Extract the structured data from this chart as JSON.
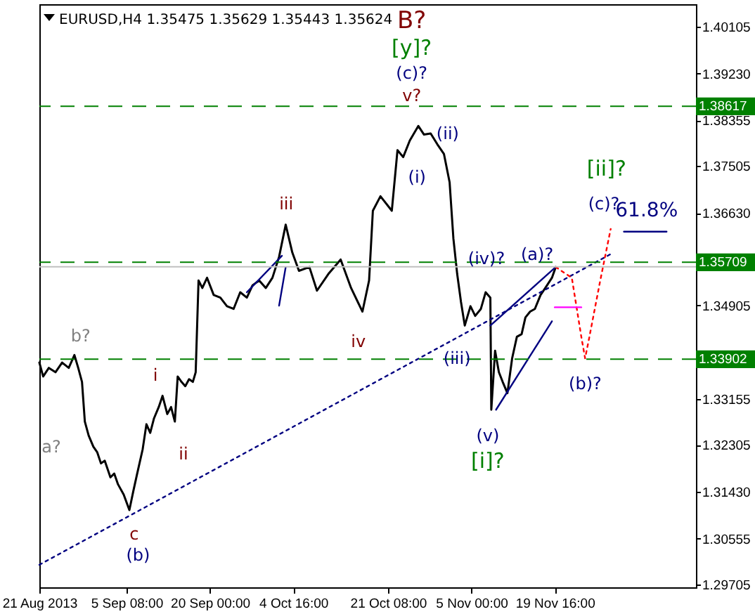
{
  "chart_data": {
    "type": "line",
    "title": "EURUSD,H4 1.35475 1.35629 1.35443 1.35624",
    "xlim": [
      "2013-08-21T00:00",
      "2013-12-14T12:00"
    ],
    "xticks": [
      {
        "value": "2013-08-21T00:00",
        "label": "21 Aug 2013"
      },
      {
        "value": "2013-09-05T08:00",
        "label": "5 Sep 08:00"
      },
      {
        "value": "2013-09-20T00:00",
        "label": "20 Sep 00:00"
      },
      {
        "value": "2013-10-04T16:00",
        "label": "4 Oct 16:00"
      },
      {
        "value": "2013-10-21T08:00",
        "label": "21 Oct 08:00"
      },
      {
        "value": "2013-11-05T00:00",
        "label": "5 Nov 00:00"
      },
      {
        "value": "2013-11-19T16:00",
        "label": "19 Nov 16:00"
      }
    ],
    "ylim": [
      1.2965,
      1.4052
    ],
    "yticks": [
      {
        "value": 1.29705,
        "label": "1.29705"
      },
      {
        "value": 1.30555,
        "label": "1.30555"
      },
      {
        "value": 1.3143,
        "label": "1.31430"
      },
      {
        "value": 1.32305,
        "label": "1.32305"
      },
      {
        "value": 1.33155,
        "label": "1.33155"
      },
      {
        "value": 1.34905,
        "label": "1.34905"
      },
      {
        "value": 1.3663,
        "label": "1.36630"
      },
      {
        "value": 1.37505,
        "label": "1.37505"
      },
      {
        "value": 1.38355,
        "label": "1.38355"
      },
      {
        "value": 1.3923,
        "label": "1.39230"
      },
      {
        "value": 1.40105,
        "label": "1.40105"
      }
    ],
    "grid": false,
    "series": [
      {
        "color": "#000000",
        "x": [
          "2013-08-21T00:00",
          "2013-08-21T16:00",
          "2013-08-22T16:00",
          "2013-08-23T20:00",
          "2013-08-25T00:00",
          "2013-08-26T04:00",
          "2013-08-27T04:00",
          "2013-08-27T20:00",
          "2013-08-28T12:00",
          "2013-08-29T00:00",
          "2013-08-29T16:00",
          "2013-08-30T12:00",
          "2013-08-31T04:00",
          "2013-08-31T20:00",
          "2013-09-01T12:00",
          "2013-09-02T12:00",
          "2013-09-03T04:00",
          "2013-09-03T20:00",
          "2013-09-04T20:00",
          "2013-09-05T20:00",
          "2013-09-06T12:00",
          "2013-09-07T04:00",
          "2013-09-08T04:00",
          "2013-09-08T20:00",
          "2013-09-09T12:00",
          "2013-09-10T04:00",
          "2013-09-11T00:00",
          "2013-09-11T16:00",
          "2013-09-12T12:00",
          "2013-09-13T04:00",
          "2013-09-13T20:00",
          "2013-09-14T08:00",
          "2013-09-15T00:00",
          "2013-09-15T16:00",
          "2013-09-16T08:00",
          "2013-09-17T00:00",
          "2013-09-17T12:00",
          "2013-09-18T00:00",
          "2013-09-18T16:00",
          "2013-09-19T12:00",
          "2013-09-20T16:00",
          "2013-09-21T20:00",
          "2013-09-23T00:00",
          "2013-09-24T04:00",
          "2013-09-25T08:00",
          "2013-09-26T12:00",
          "2013-09-27T12:00",
          "2013-09-28T16:00",
          "2013-09-29T20:00",
          "2013-10-01T00:00",
          "2013-10-02T04:00",
          "2013-10-03T08:00",
          "2013-10-04T12:00",
          "2013-10-05T16:00",
          "2013-10-07T12:00",
          "2013-10-08T20:00",
          "2013-10-10T20:00",
          "2013-10-13T00:00",
          "2013-10-14T20:00",
          "2013-10-16T20:00",
          "2013-10-18T00:00",
          "2013-10-18T16:00",
          "2013-10-20T00:00",
          "2013-10-22T00:00",
          "2013-10-23T00:00",
          "2013-10-24T00:00",
          "2013-10-25T04:00",
          "2013-10-26T16:00",
          "2013-10-27T16:00",
          "2013-10-28T20:00",
          "2013-10-30T00:00",
          "2013-10-31T04:00",
          "2013-11-01T04:00",
          "2013-11-01T20:00",
          "2013-11-02T12:00",
          "2013-11-03T04:00",
          "2013-11-03T20:00",
          "2013-11-04T20:00",
          "2013-11-05T16:00",
          "2013-11-06T16:00",
          "2013-11-07T12:00",
          "2013-11-08T08:00",
          "2013-11-08T12:00",
          "2013-11-09T04:00",
          "2013-11-09T20:00",
          "2013-11-10T12:00",
          "2013-11-11T08:00",
          "2013-11-12T04:00",
          "2013-11-13T00:00",
          "2013-11-13T20:00",
          "2013-11-14T12:00",
          "2013-11-15T08:00",
          "2013-11-16T04:00",
          "2013-11-17T04:00",
          "2013-11-18T00:00",
          "2013-11-19T04:00",
          "2013-11-19T20:00"
        ],
        "values": [
          1.3384,
          1.3358,
          1.3374,
          1.3366,
          1.3384,
          1.3374,
          1.3398,
          1.3374,
          1.3348,
          1.3274,
          1.3248,
          1.3227,
          1.3217,
          1.3196,
          1.3201,
          1.317,
          1.3177,
          1.3157,
          1.3138,
          1.3109,
          1.3143,
          1.3175,
          1.3222,
          1.3269,
          1.3253,
          1.328,
          1.3301,
          1.3322,
          1.3288,
          1.3301,
          1.3274,
          1.3358,
          1.3348,
          1.334,
          1.3353,
          1.3348,
          1.3366,
          1.3537,
          1.3523,
          1.3542,
          1.351,
          1.3505,
          1.3489,
          1.3484,
          1.3515,
          1.3505,
          1.3528,
          1.3537,
          1.3523,
          1.3542,
          1.3581,
          1.3641,
          1.3589,
          1.3555,
          1.3562,
          1.3518,
          1.3549,
          1.3576,
          1.3523,
          1.3479,
          1.3537,
          1.3667,
          1.3694,
          1.3667,
          1.378,
          1.3767,
          1.3798,
          1.3825,
          1.3809,
          1.3811,
          1.3791,
          1.3773,
          1.372,
          1.3615,
          1.3549,
          1.3497,
          1.3453,
          1.3489,
          1.3471,
          1.3484,
          1.3515,
          1.3505,
          1.3296,
          1.3406,
          1.3366,
          1.3348,
          1.3327,
          1.3392,
          1.3432,
          1.3437,
          1.3468,
          1.3479,
          1.3484,
          1.351,
          1.3523,
          1.3542,
          1.3562
        ]
      },
      {
        "color": "#000080",
        "line_style": "dotted",
        "x": [
          "2013-08-21T00:00",
          "2013-11-30T00:00"
        ],
        "values": [
          1.3007,
          1.3589
        ]
      },
      {
        "color": "#000080",
        "x": [
          "2013-09-26T12:00",
          "2013-10-02T16:00"
        ],
        "values": [
          1.3515,
          1.3583
        ]
      },
      {
        "color": "#000080",
        "x": [
          "2013-10-02T04:00",
          "2013-10-03T08:00"
        ],
        "values": [
          1.349,
          1.3562
        ]
      },
      {
        "color": "#000080",
        "x": [
          "2013-11-08T08:00",
          "2013-11-19T20:00"
        ],
        "values": [
          1.3453,
          1.3562
        ]
      },
      {
        "color": "#000080",
        "x": [
          "2013-11-09T08:00",
          "2013-11-19T04:00"
        ],
        "values": [
          1.3296,
          1.3461
        ]
      },
      {
        "color": "#ff0000",
        "line_style": "dotted",
        "x": [
          "2013-11-19T20:00",
          "2013-11-22T16:00",
          "2013-11-24T08:00",
          "2013-11-25T00:00",
          "2013-11-25T16:00",
          "2013-11-27T16:00",
          "2013-11-29T12:00"
        ],
        "values": [
          1.3562,
          1.3542,
          1.3432,
          1.3392,
          1.3427,
          1.3537,
          1.3633
        ]
      },
      {
        "color": "#ff00ff",
        "x": [
          "2013-11-19T16:00",
          "2013-11-24T08:00"
        ],
        "values": [
          1.3487,
          1.3487
        ]
      },
      {
        "color": "#000080",
        "x": [
          "2013-12-01T20:00",
          "2013-12-09T08:00"
        ],
        "values": [
          1.3628,
          1.3628
        ]
      }
    ],
    "ref_lines": [
      {
        "axis": "y",
        "value": 1.38617,
        "label": "1.38617",
        "color": "#008000",
        "line_style": "dashed"
      },
      {
        "axis": "y",
        "value": 1.35709,
        "label": "1.35709",
        "color": "#008000",
        "line_style": "dashed"
      },
      {
        "axis": "y",
        "value": 1.33902,
        "label": "1.33902",
        "color": "#008000",
        "line_style": "dashed"
      },
      {
        "axis": "y",
        "value": 1.35624,
        "label": null,
        "color": "#c0c0c0",
        "line_style": "solid"
      }
    ],
    "annotations": [
      "B?",
      "[y]?",
      "(c)?",
      "v?",
      "(ii)",
      "(i)",
      "iii",
      "iv",
      "(iv)?",
      "(a)?",
      "(iii)",
      "(v)",
      "[i]?",
      "(b)?",
      "[ii]?",
      "(c)?",
      "61.8%",
      "b?",
      "a?",
      "i",
      "ii",
      "c",
      "(b)"
    ]
  }
}
